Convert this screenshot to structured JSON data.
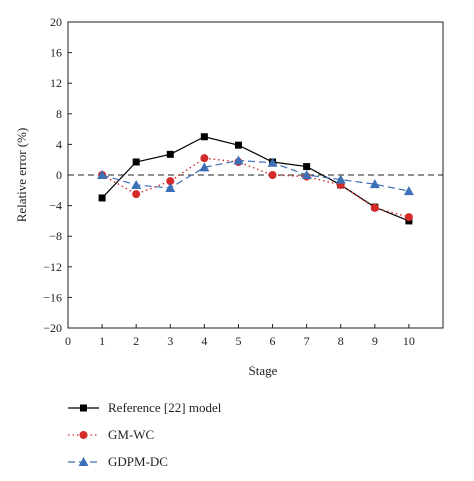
{
  "chart_data": {
    "type": "line",
    "xlabel": "Stage",
    "ylabel": "Relative error (%)",
    "xlim": [
      0,
      11
    ],
    "ylim": [
      -20,
      20
    ],
    "x_ticks": [
      "0",
      "1",
      "2",
      "3",
      "4",
      "5",
      "6",
      "7",
      "8",
      "9",
      "10"
    ],
    "y_ticks": [
      "20",
      "16",
      "12",
      "8",
      "4",
      "0",
      "−4",
      "−8",
      "−12",
      "−16",
      "−20"
    ],
    "reference_line": 0,
    "x": [
      1,
      2,
      3,
      4,
      5,
      6,
      7,
      8,
      9,
      10
    ],
    "series": [
      {
        "name": "Reference [22] model",
        "values": [
          -3.0,
          1.7,
          2.7,
          5.0,
          3.9,
          1.7,
          1.1,
          -1.3,
          -4.2,
          -6.0
        ],
        "color": "#000000",
        "marker": "square",
        "line_style": "solid"
      },
      {
        "name": "GM-WC",
        "values": [
          0.0,
          -2.5,
          -0.8,
          2.2,
          1.7,
          0.0,
          -0.2,
          -1.3,
          -4.3,
          -5.5
        ],
        "color": "#d42a2a",
        "marker": "circle",
        "line_style": "dotted"
      },
      {
        "name": "GDPM-DC",
        "values": [
          0.0,
          -1.3,
          -1.7,
          1.0,
          1.9,
          1.6,
          0.0,
          -0.6,
          -1.2,
          -2.1
        ],
        "color": "#3b6fb6",
        "marker": "triangle",
        "line_style": "dashed"
      }
    ],
    "legend_position": "bottom"
  }
}
